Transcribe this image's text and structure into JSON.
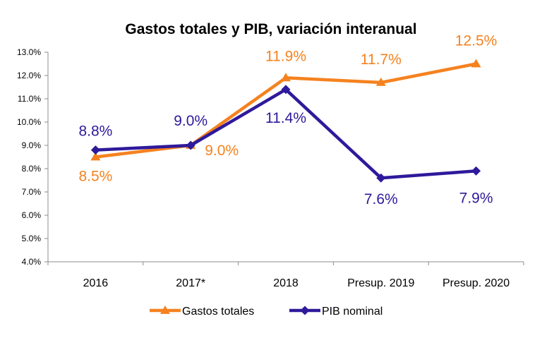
{
  "chart_data": {
    "type": "line",
    "title": "Gastos totales y PIB, variación interanual",
    "xlabel": "",
    "ylabel": "",
    "categories": [
      "2016",
      "2017*",
      "2018",
      "Presup. 2019",
      "Presup. 2020"
    ],
    "ylim": [
      4.0,
      13.0
    ],
    "yticks": [
      "4.0%",
      "5.0%",
      "6.0%",
      "7.0%",
      "8.0%",
      "9.0%",
      "10.0%",
      "11.0%",
      "12.0%",
      "13.0%"
    ],
    "grid": false,
    "legend_position": "bottom",
    "series": [
      {
        "name": "Gastos totales",
        "color": "#F5821F",
        "marker": "triangle",
        "values": [
          8.5,
          9.0,
          11.9,
          11.7,
          12.5
        ],
        "labels": [
          "8.5%",
          "9.0%",
          "11.9%",
          "11.7%",
          "12.5%"
        ]
      },
      {
        "name": "PIB nominal",
        "color": "#2E1A9B",
        "marker": "diamond",
        "values": [
          8.8,
          9.0,
          11.4,
          7.6,
          7.9
        ],
        "labels": [
          "8.8%",
          "9.0%",
          "11.4%",
          "7.6%",
          "7.9%"
        ]
      }
    ]
  }
}
